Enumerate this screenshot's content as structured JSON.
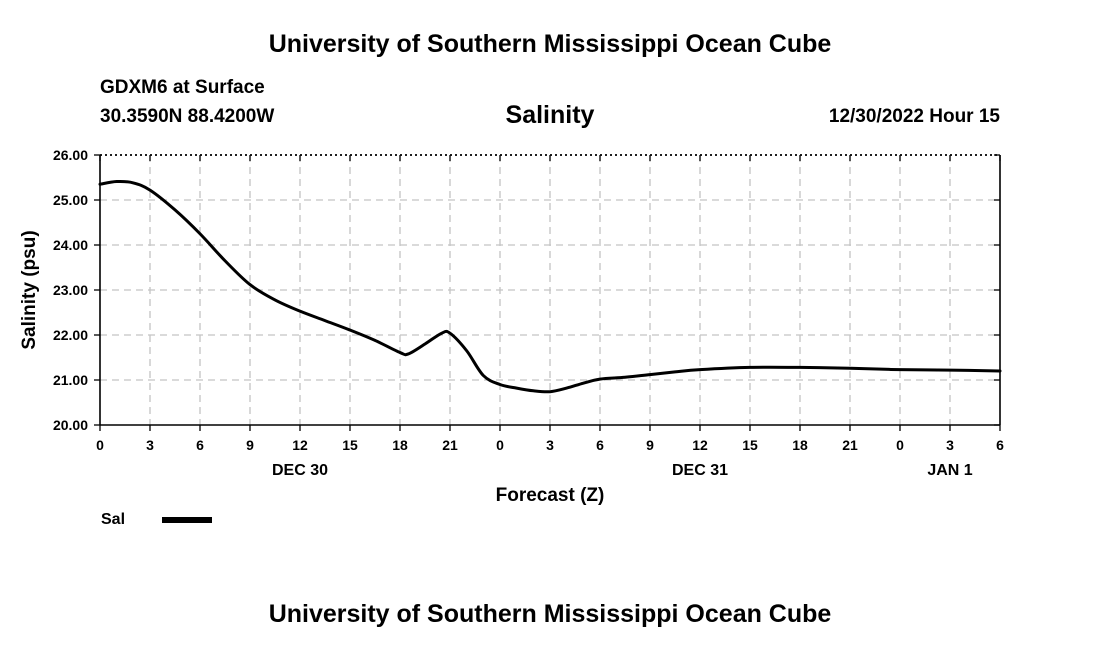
{
  "header": {
    "title_top": "University of Southern Mississippi Ocean Cube",
    "station": "GDXM6 at Surface",
    "coords": "30.3590N  88.4200W",
    "variable_title": "Salinity",
    "datetime": "12/30/2022 Hour 15"
  },
  "footer": {
    "title_bottom": "University of Southern Mississippi Ocean Cube"
  },
  "legend": {
    "label": "Sal",
    "color": "#000000"
  },
  "chart_data": {
    "type": "line",
    "title": "Salinity",
    "xlabel": "Forecast (Z)",
    "ylabel": "Salinity (psu)",
    "xlim": [
      0,
      54
    ],
    "ylim": [
      20,
      26
    ],
    "grid": true,
    "x_ticks": [
      0,
      3,
      6,
      9,
      12,
      15,
      18,
      21,
      24,
      27,
      30,
      33,
      36,
      39,
      42,
      45,
      48,
      51,
      54
    ],
    "x_tick_labels": [
      "0",
      "3",
      "6",
      "9",
      "12",
      "15",
      "18",
      "21",
      "0",
      "3",
      "6",
      "9",
      "12",
      "15",
      "18",
      "21",
      "0",
      "3",
      "6"
    ],
    "y_ticks": [
      20,
      21,
      22,
      23,
      24,
      25,
      26
    ],
    "y_tick_labels": [
      "20.00",
      "21.00",
      "22.00",
      "23.00",
      "24.00",
      "25.00",
      "26.00"
    ],
    "date_labels": [
      {
        "x": 12,
        "label": "DEC 30"
      },
      {
        "x": 36,
        "label": "DEC 31"
      },
      {
        "x": 51,
        "label": "JAN 1"
      }
    ],
    "series": [
      {
        "name": "Sal",
        "color": "#000000",
        "x": [
          0,
          1,
          2,
          3,
          4.5,
          6,
          7.5,
          9,
          10.5,
          12,
          13.5,
          15,
          16.5,
          18,
          18.5,
          19.5,
          20.5,
          21,
          22,
          23,
          24,
          25,
          26,
          27,
          28,
          29,
          30,
          31.5,
          33,
          34.5,
          36,
          39,
          42,
          45,
          48,
          51,
          54
        ],
        "values": [
          25.35,
          25.41,
          25.38,
          25.22,
          24.78,
          24.25,
          23.65,
          23.12,
          22.78,
          22.53,
          22.32,
          22.11,
          21.88,
          21.61,
          21.58,
          21.8,
          22.04,
          22.04,
          21.65,
          21.1,
          20.9,
          20.82,
          20.76,
          20.74,
          20.82,
          20.93,
          21.02,
          21.06,
          21.12,
          21.18,
          21.23,
          21.28,
          21.28,
          21.26,
          21.23,
          21.22,
          21.2
        ]
      }
    ]
  }
}
